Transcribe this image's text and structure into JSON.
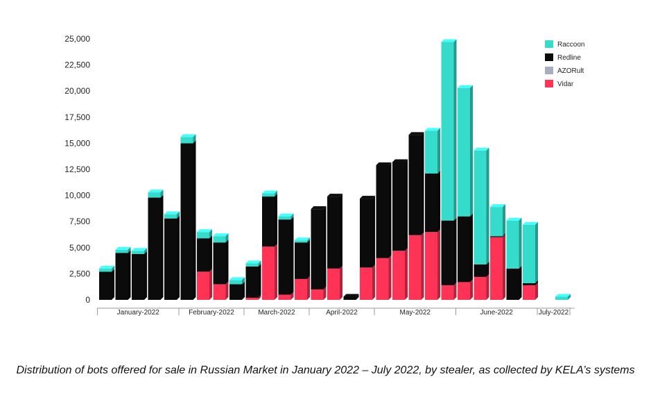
{
  "chart_data": {
    "type": "bar",
    "stacked": true,
    "categories": [
      "January-2022",
      "January-2022",
      "January-2022",
      "January-2022",
      "January-2022",
      "February-2022",
      "February-2022",
      "February-2022",
      "February-2022",
      "March-2022",
      "March-2022",
      "March-2022",
      "March-2022",
      "April-2022",
      "April-2022",
      "April-2022",
      "April-2022",
      "May-2022",
      "May-2022",
      "May-2022",
      "May-2022",
      "May-2022",
      "June-2022",
      "June-2022",
      "June-2022",
      "June-2022",
      "June-2022",
      "July-2022",
      "July-2022"
    ],
    "month_groups": [
      {
        "label": "January-2022",
        "count": 5
      },
      {
        "label": "February-2022",
        "count": 4
      },
      {
        "label": "March-2022",
        "count": 4
      },
      {
        "label": "April-2022",
        "count": 4
      },
      {
        "label": "May-2022",
        "count": 5
      },
      {
        "label": "June-2022",
        "count": 5
      },
      {
        "label": "July-2022",
        "count": 2
      }
    ],
    "series": [
      {
        "name": "Vidar",
        "color": "#fe3355",
        "values": [
          0,
          0,
          0,
          0,
          0,
          0,
          2700,
          1500,
          0,
          200,
          5100,
          500,
          2000,
          1000,
          3000,
          0,
          3100,
          4000,
          4700,
          6200,
          6500,
          1400,
          1700,
          2200,
          6000,
          0,
          1400,
          0,
          0
        ]
      },
      {
        "name": "AZORult",
        "color": "#a8adc2",
        "values": [
          0,
          0,
          0,
          0,
          0,
          0,
          0,
          0,
          0,
          0,
          0,
          0,
          0,
          0,
          0,
          0,
          0,
          0,
          0,
          0,
          0,
          0,
          0,
          0,
          0,
          0,
          0,
          0,
          0
        ]
      },
      {
        "name": "Redline",
        "color": "#0b0b0b",
        "values": [
          2700,
          4500,
          4400,
          9800,
          7800,
          15000,
          3200,
          4000,
          1500,
          3000,
          4800,
          7200,
          3500,
          7700,
          6900,
          300,
          6600,
          8900,
          8500,
          9600,
          5600,
          6200,
          6300,
          1200,
          100,
          3000,
          200,
          0,
          0
        ]
      },
      {
        "name": "Raccoon",
        "color": "#36dccb",
        "values": [
          300,
          300,
          300,
          500,
          400,
          600,
          600,
          600,
          400,
          300,
          300,
          300,
          200,
          0,
          0,
          0,
          0,
          0,
          0,
          0,
          4100,
          17100,
          12300,
          10900,
          2800,
          4600,
          5600,
          0,
          300
        ]
      }
    ],
    "legend_order": [
      "Raccoon",
      "Redline",
      "AZORult",
      "Vidar"
    ],
    "legend_position": "top-right",
    "ylim": [
      0,
      25000
    ],
    "yticks": [
      "0",
      "2,500",
      "5,000",
      "7,500",
      "10,000",
      "12,500",
      "15,000",
      "17,500",
      "20,000",
      "22,500",
      "25,000"
    ],
    "ytick_values": [
      0,
      2500,
      5000,
      7500,
      10000,
      12500,
      15000,
      17500,
      20000,
      22500,
      25000
    ],
    "title": "",
    "xlabel": "",
    "ylabel": "",
    "grid": false
  },
  "caption": "Distribution of bots offered for sale in Russian Market in January 2022 – July 2022, by stealer, as collected by KELA’s systems"
}
